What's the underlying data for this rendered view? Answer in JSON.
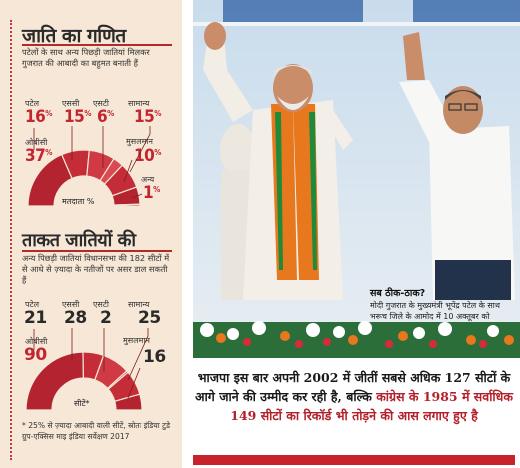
{
  "section1": {
    "title": "जाति का गणित",
    "subtitle": "पटेलों के साथ अन्य पिछड़ी जातियां मिलकर गुजरात की आबादी का बहुमत बनाती हैं",
    "gauge_label": "मतदाता %",
    "items": [
      {
        "label": "पटेल",
        "value": "16"
      },
      {
        "label": "एससी",
        "value": "15"
      },
      {
        "label": "एसटी",
        "value": "6"
      },
      {
        "label": "सामान्य",
        "value": "15"
      },
      {
        "label": "ओबीसी",
        "value": "37"
      },
      {
        "label": "मुसलमान",
        "value": "10"
      },
      {
        "label": "अन्य",
        "value": "1"
      }
    ],
    "percent_sign": "%"
  },
  "section2": {
    "title": "ताकत जातियों की",
    "subtitle": "अन्य पिछड़ी जातियां विधानसभा की 182 सीटों में से आधे से ज़्यादा के नतीजों पर असर डाल सकती हैं",
    "gauge_label": "सीटें*",
    "items": [
      {
        "label": "पटेल",
        "value": "21"
      },
      {
        "label": "एससी",
        "value": "28"
      },
      {
        "label": "एसटी",
        "value": "2"
      },
      {
        "label": "सामान्य",
        "value": "25"
      },
      {
        "label": "ओबीसी",
        "value": "90"
      },
      {
        "label": "मुसलमान",
        "value": "16"
      }
    ]
  },
  "footnote": "* 25% से ज़्यादा आबादी वाली सीटें, स्रोतः इंडिया टुडे ग्रुप-एक्सिस माइ इंडिया सर्वेक्षण 2017",
  "photo": {
    "caption_title": "सब ठीक-ठाक?",
    "caption_text": "मोदी गुजरात के मुख्यमंत्री भूपेंद्र पटेल के साथ भरूच जिले के आमोद में 10 अक्तूबर को"
  },
  "quote": {
    "part1": "भाजपा इस बार अपनी 2002 में जीतीं सबसे अधिक 127 सीटों के आगे जाने की उम्मीद कर रही है, बल्कि ",
    "part2": "कांग्रेस के 1985 में सर्वाधिक 149 सीटों का रिकॉर्ड भी तोड़ने की आस लगाए हुए है"
  },
  "colors": {
    "accent": "#c3262f",
    "panel": "#f6e7d6",
    "saffron": "#e8781e"
  }
}
